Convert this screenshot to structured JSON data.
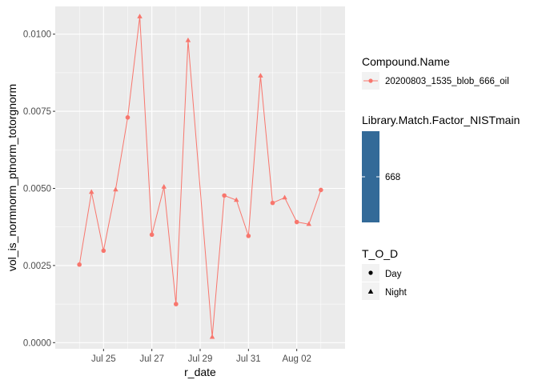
{
  "chart_data": {
    "type": "line",
    "xlabel": "r_date",
    "ylabel": "vol_is_normnorm_ptnorm_totorgnorm",
    "ylim": [
      -0.0002,
      0.0109
    ],
    "xlim": [
      "2020-07-23",
      "2020-08-04"
    ],
    "grid": true,
    "x_ticks": [
      "Jul 25",
      "Jul 27",
      "Jul 29",
      "Jul 31",
      "Aug 02"
    ],
    "x_tick_dates": [
      "2020-07-25",
      "2020-07-27",
      "2020-07-29",
      "2020-07-31",
      "2020-08-02"
    ],
    "y_ticks": [
      "0.0000",
      "0.0025",
      "0.0050",
      "0.0075",
      "0.0100"
    ],
    "y_tick_values": [
      0.0,
      0.0025,
      0.005,
      0.0075,
      0.01
    ],
    "series": [
      {
        "name": "20200803_1535_blob_666_oil",
        "color": "#F8766D",
        "points": [
          {
            "x": "2020-07-24 00:00",
            "y": 0.00253,
            "tod": "Day"
          },
          {
            "x": "2020-07-24 12:00",
            "y": 0.00488,
            "tod": "Night"
          },
          {
            "x": "2020-07-25 00:00",
            "y": 0.00298,
            "tod": "Day"
          },
          {
            "x": "2020-07-25 12:00",
            "y": 0.00496,
            "tod": "Night"
          },
          {
            "x": "2020-07-26 00:00",
            "y": 0.0073,
            "tod": "Day"
          },
          {
            "x": "2020-07-26 12:00",
            "y": 0.01057,
            "tod": "Night"
          },
          {
            "x": "2020-07-27 00:00",
            "y": 0.0035,
            "tod": "Day"
          },
          {
            "x": "2020-07-27 12:00",
            "y": 0.00505,
            "tod": "Night"
          },
          {
            "x": "2020-07-28 00:00",
            "y": 0.00125,
            "tod": "Day"
          },
          {
            "x": "2020-07-28 12:00",
            "y": 0.0098,
            "tod": "Night"
          },
          {
            "x": "2020-07-29 12:00",
            "y": 0.00018,
            "tod": "Night"
          },
          {
            "x": "2020-07-30 00:00",
            "y": 0.00477,
            "tod": "Day"
          },
          {
            "x": "2020-07-30 12:00",
            "y": 0.00462,
            "tod": "Night"
          },
          {
            "x": "2020-07-31 00:00",
            "y": 0.00346,
            "tod": "Day"
          },
          {
            "x": "2020-07-31 12:00",
            "y": 0.00865,
            "tod": "Night"
          },
          {
            "x": "2020-08-01 00:00",
            "y": 0.00453,
            "tod": "Day"
          },
          {
            "x": "2020-08-01 12:00",
            "y": 0.0047,
            "tod": "Night"
          },
          {
            "x": "2020-08-02 00:00",
            "y": 0.00391,
            "tod": "Day"
          },
          {
            "x": "2020-08-02 12:00",
            "y": 0.00384,
            "tod": "Night"
          },
          {
            "x": "2020-08-03 00:00",
            "y": 0.00495,
            "tod": "Day"
          }
        ]
      }
    ],
    "legend": {
      "placement": "right",
      "compound": {
        "title": "Compound.Name",
        "entries": [
          "20200803_1535_blob_666_oil"
        ]
      },
      "match_factor": {
        "title": "Library.Match.Factor_NISTmain",
        "label": "668",
        "color": "#336A98"
      },
      "tod": {
        "title": "T_O_D",
        "entries": [
          {
            "label": "Day",
            "shape": "circle"
          },
          {
            "label": "Night",
            "shape": "triangle"
          }
        ]
      }
    },
    "panel_color": "#EBEBEB",
    "grid_color": "#FFFFFF"
  }
}
